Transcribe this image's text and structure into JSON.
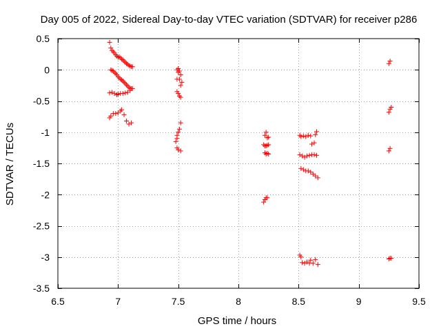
{
  "chart_data": {
    "type": "scatter",
    "title": "Day 005 of 2022, Sidereal Day-to-day VTEC variation (SDTVAR) for receiver p286",
    "xlabel": "GPS time / hours",
    "ylabel": "SDTVAR / TECUs",
    "xlim": [
      6.5,
      9.5
    ],
    "ylim": [
      -3.5,
      0.5
    ],
    "xticks": [
      6.5,
      7,
      7.5,
      8,
      8.5,
      9,
      9.5
    ],
    "xtick_labels": [
      "6.5",
      "7",
      "7.5",
      "8",
      "8.5",
      "9",
      "9.5"
    ],
    "yticks": [
      0.5,
      0,
      -0.5,
      -1,
      -1.5,
      -2,
      -2.5,
      -3,
      -3.5
    ],
    "ytick_labels": [
      "0.5",
      "0",
      "-0.5",
      "-1",
      "-1.5",
      "-2",
      "-2.5",
      "-3",
      "-3.5"
    ],
    "grid": true,
    "marker": "+",
    "series": [
      {
        "name": "SDTVAR",
        "color": "#ff0000",
        "points": [
          [
            6.93,
            0.44
          ],
          [
            6.94,
            0.35
          ],
          [
            6.95,
            0.31
          ],
          [
            6.96,
            0.29
          ],
          [
            6.97,
            0.27
          ],
          [
            6.98,
            0.24
          ],
          [
            6.99,
            0.22
          ],
          [
            7.0,
            0.2
          ],
          [
            7.01,
            0.21
          ],
          [
            7.02,
            0.19
          ],
          [
            7.03,
            0.17
          ],
          [
            7.04,
            0.16
          ],
          [
            7.05,
            0.14
          ],
          [
            7.06,
            0.12
          ],
          [
            7.07,
            0.1
          ],
          [
            7.08,
            0.09
          ],
          [
            7.09,
            0.07
          ],
          [
            7.1,
            0.06
          ],
          [
            7.11,
            0.05
          ],
          [
            7.12,
            0.05
          ],
          [
            6.94,
            0.0
          ],
          [
            6.95,
            -0.01
          ],
          [
            6.96,
            -0.02
          ],
          [
            6.97,
            -0.04
          ],
          [
            6.98,
            -0.06
          ],
          [
            6.99,
            -0.08
          ],
          [
            7.0,
            -0.11
          ],
          [
            7.01,
            -0.13
          ],
          [
            7.02,
            -0.15
          ],
          [
            7.03,
            -0.16
          ],
          [
            7.04,
            -0.18
          ],
          [
            7.05,
            -0.2
          ],
          [
            7.06,
            -0.22
          ],
          [
            7.07,
            -0.24
          ],
          [
            7.08,
            -0.26
          ],
          [
            7.09,
            -0.28
          ],
          [
            7.1,
            -0.3
          ],
          [
            7.11,
            -0.3
          ],
          [
            7.12,
            -0.3
          ],
          [
            6.93,
            -0.37
          ],
          [
            6.95,
            -0.36
          ],
          [
            6.97,
            -0.38
          ],
          [
            6.99,
            -0.4
          ],
          [
            7.0,
            -0.39
          ],
          [
            7.02,
            -0.38
          ],
          [
            7.04,
            -0.38
          ],
          [
            7.06,
            -0.37
          ],
          [
            7.08,
            -0.36
          ],
          [
            7.1,
            -0.33
          ],
          [
            6.93,
            -0.77
          ],
          [
            6.94,
            -0.74
          ],
          [
            6.96,
            -0.7
          ],
          [
            6.98,
            -0.7
          ],
          [
            7.0,
            -0.69
          ],
          [
            7.02,
            -0.66
          ],
          [
            7.03,
            -0.64
          ],
          [
            7.05,
            -0.72
          ],
          [
            7.07,
            -0.82
          ],
          [
            7.09,
            -0.87
          ],
          [
            7.11,
            -0.85
          ],
          [
            7.49,
            0.0
          ],
          [
            7.5,
            0.02
          ],
          [
            7.51,
            -0.02
          ],
          [
            7.5,
            -0.04
          ],
          [
            7.52,
            -0.08
          ],
          [
            7.49,
            -0.15
          ],
          [
            7.51,
            -0.15
          ],
          [
            7.53,
            -0.2
          ],
          [
            7.52,
            -0.25
          ],
          [
            7.49,
            -0.35
          ],
          [
            7.5,
            -0.38
          ],
          [
            7.51,
            -0.42
          ],
          [
            7.52,
            -0.44
          ],
          [
            7.52,
            -0.85
          ],
          [
            7.51,
            -0.95
          ],
          [
            7.5,
            -1.0
          ],
          [
            7.49,
            -1.05
          ],
          [
            7.49,
            -1.1
          ],
          [
            7.48,
            -1.15
          ],
          [
            7.49,
            -1.25
          ],
          [
            7.5,
            -1.28
          ],
          [
            7.52,
            -1.3
          ],
          [
            8.21,
            -1.2
          ],
          [
            8.22,
            -1.22
          ],
          [
            8.23,
            -1.22
          ],
          [
            8.24,
            -1.21
          ],
          [
            8.25,
            -1.2
          ],
          [
            8.22,
            -1.05
          ],
          [
            8.23,
            -1.0
          ],
          [
            8.24,
            -1.09
          ],
          [
            8.25,
            -1.08
          ],
          [
            8.22,
            -1.33
          ],
          [
            8.23,
            -1.35
          ],
          [
            8.24,
            -1.34
          ],
          [
            8.25,
            -1.35
          ],
          [
            8.21,
            -2.12
          ],
          [
            8.22,
            -2.08
          ],
          [
            8.23,
            -2.05
          ],
          [
            8.24,
            -2.05
          ],
          [
            8.51,
            -1.05
          ],
          [
            8.52,
            -1.07
          ],
          [
            8.54,
            -1.06
          ],
          [
            8.56,
            -1.07
          ],
          [
            8.58,
            -1.05
          ],
          [
            8.6,
            -1.06
          ],
          [
            8.61,
            -1.19
          ],
          [
            8.63,
            -1.17
          ],
          [
            8.64,
            -1.04
          ],
          [
            8.65,
            -0.99
          ],
          [
            8.51,
            -1.36
          ],
          [
            8.53,
            -1.38
          ],
          [
            8.55,
            -1.4
          ],
          [
            8.57,
            -1.38
          ],
          [
            8.59,
            -1.37
          ],
          [
            8.61,
            -1.36
          ],
          [
            8.63,
            -1.36
          ],
          [
            8.65,
            -1.37
          ],
          [
            8.52,
            -1.58
          ],
          [
            8.54,
            -1.6
          ],
          [
            8.56,
            -1.62
          ],
          [
            8.58,
            -1.62
          ],
          [
            8.6,
            -1.64
          ],
          [
            8.62,
            -1.67
          ],
          [
            8.64,
            -1.7
          ],
          [
            8.66,
            -1.73
          ],
          [
            8.51,
            -2.97
          ],
          [
            8.52,
            -3.0
          ],
          [
            8.53,
            -3.09
          ],
          [
            8.55,
            -3.1
          ],
          [
            8.57,
            -3.08
          ],
          [
            8.59,
            -3.1
          ],
          [
            8.6,
            -3.05
          ],
          [
            8.62,
            -3.1
          ],
          [
            8.64,
            -3.04
          ],
          [
            8.66,
            -3.12
          ],
          [
            9.25,
            0.1
          ],
          [
            9.26,
            0.14
          ],
          [
            9.25,
            -0.68
          ],
          [
            9.26,
            -0.63
          ],
          [
            9.27,
            -0.6
          ],
          [
            9.25,
            -1.3
          ],
          [
            9.26,
            -1.26
          ],
          [
            9.25,
            -3.03
          ],
          [
            9.26,
            -3.02
          ],
          [
            9.27,
            -3.02
          ]
        ]
      }
    ]
  }
}
